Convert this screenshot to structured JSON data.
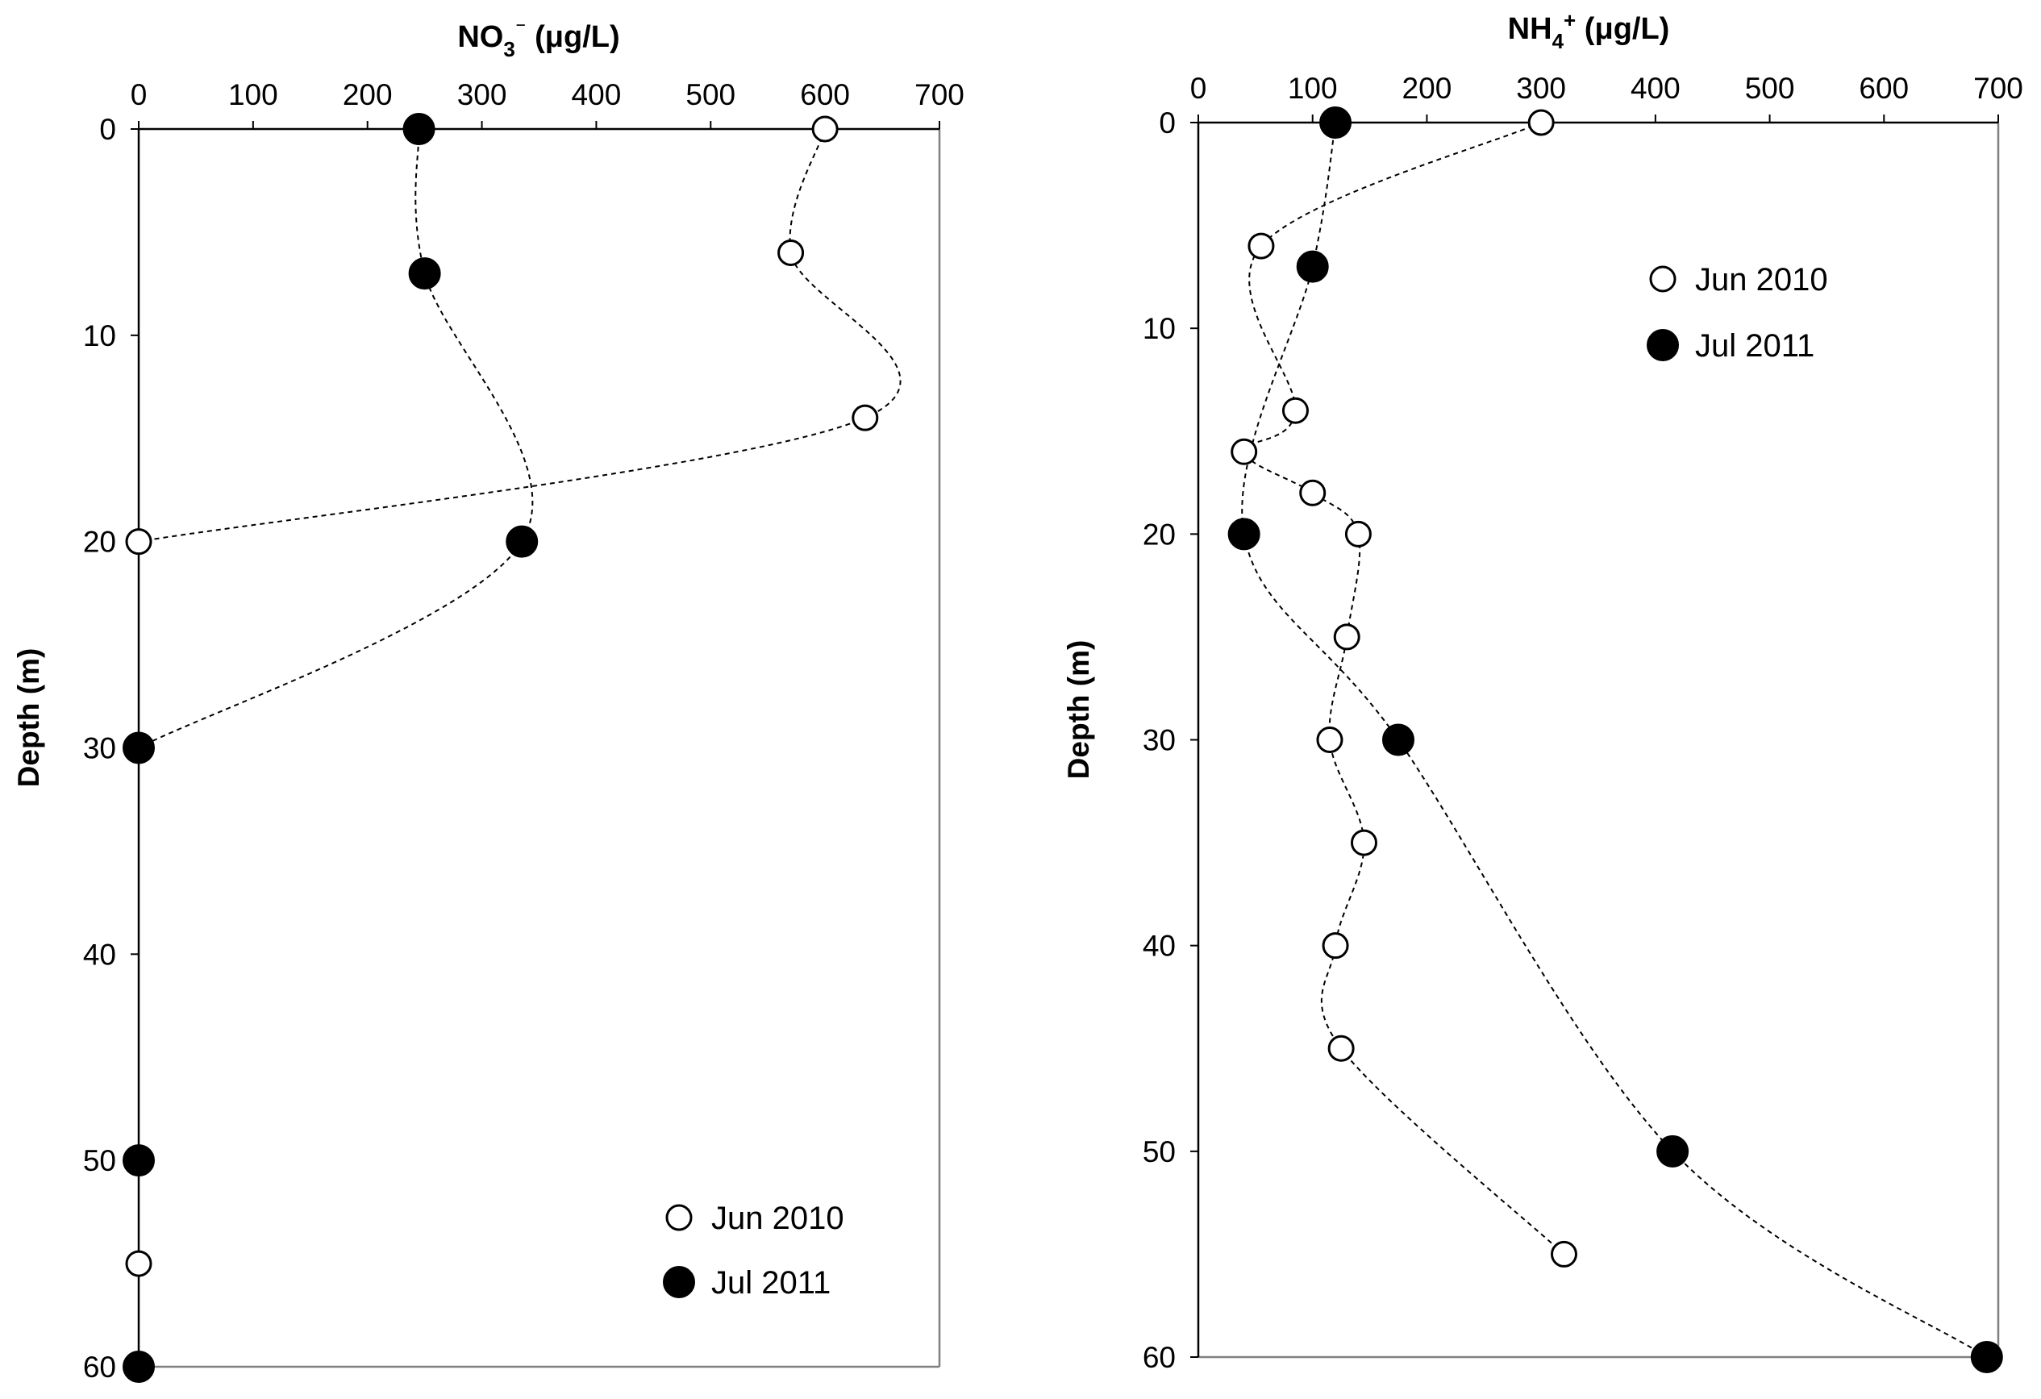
{
  "chart_data": [
    {
      "type": "scatter",
      "title": "NO₃⁻ (μg/L)",
      "title_parts": [
        "NO",
        "3",
        "⁻",
        " (",
        "μ",
        "g/L)"
      ],
      "xlabel": "NO₃⁻ (μg/L)",
      "ylabel": "Depth (m)",
      "xlim": [
        0,
        700
      ],
      "ylim": [
        0,
        60
      ],
      "x_ticks": [
        "0",
        "100",
        "200",
        "300",
        "400",
        "500",
        "600",
        "700"
      ],
      "y_ticks": [
        "0",
        "10",
        "20",
        "30",
        "40",
        "50",
        "60"
      ],
      "x_axis_position": "top",
      "y_axis_reversed": true,
      "grid": false,
      "legend_position": "bottom-right",
      "series": [
        {
          "name": "Jun 2010",
          "marker": "open-circle",
          "points": [
            {
              "x": 600,
              "depth": 0
            },
            {
              "x": 570,
              "depth": 6
            },
            {
              "x": 635,
              "depth": 14
            },
            {
              "x": 0,
              "depth": 20
            },
            {
              "x": 0,
              "depth": 55
            }
          ],
          "curve_through": [
            0,
            1,
            2,
            3
          ]
        },
        {
          "name": "Jul 2011",
          "marker": "filled-circle",
          "points": [
            {
              "x": 245,
              "depth": 0
            },
            {
              "x": 250,
              "depth": 7
            },
            {
              "x": 335,
              "depth": 20
            },
            {
              "x": 0,
              "depth": 30
            },
            {
              "x": 0,
              "depth": 50
            },
            {
              "x": 0,
              "depth": 60
            }
          ],
          "curve_through": [
            0,
            1,
            2,
            3
          ]
        }
      ],
      "legend": [
        {
          "label": "Jun 2010",
          "marker": "open-circle"
        },
        {
          "label": "Jul 2011",
          "marker": "filled-circle"
        }
      ]
    },
    {
      "type": "scatter",
      "title": "NH₄⁺ (μg/L)",
      "title_parts": [
        "NH",
        "4",
        "+",
        " (",
        "μ",
        "g/L)"
      ],
      "xlabel": "NH₄⁺ (μg/L)",
      "ylabel": "Depth (m)",
      "xlim": [
        0,
        700
      ],
      "ylim": [
        0,
        60
      ],
      "x_ticks": [
        "0",
        "100",
        "200",
        "300",
        "400",
        "500",
        "600",
        "700"
      ],
      "y_ticks": [
        "0",
        "10",
        "20",
        "30",
        "40",
        "50",
        "60"
      ],
      "x_axis_position": "top",
      "y_axis_reversed": true,
      "grid": false,
      "legend_position": "top-right",
      "series": [
        {
          "name": "Jun 2010",
          "marker": "open-circle",
          "points": [
            {
              "x": 300,
              "depth": 0
            },
            {
              "x": 55,
              "depth": 6
            },
            {
              "x": 85,
              "depth": 14
            },
            {
              "x": 40,
              "depth": 16
            },
            {
              "x": 100,
              "depth": 18
            },
            {
              "x": 140,
              "depth": 20
            },
            {
              "x": 130,
              "depth": 25
            },
            {
              "x": 115,
              "depth": 30
            },
            {
              "x": 145,
              "depth": 35
            },
            {
              "x": 120,
              "depth": 40
            },
            {
              "x": 125,
              "depth": 45
            },
            {
              "x": 320,
              "depth": 55
            }
          ],
          "curve_through": [
            0,
            1,
            2,
            3,
            4,
            5,
            6,
            7,
            8,
            9,
            10,
            11
          ]
        },
        {
          "name": "Jul 2011",
          "marker": "filled-circle",
          "points": [
            {
              "x": 120,
              "depth": 0
            },
            {
              "x": 100,
              "depth": 7
            },
            {
              "x": 40,
              "depth": 20
            },
            {
              "x": 175,
              "depth": 30
            },
            {
              "x": 415,
              "depth": 50
            },
            {
              "x": 690,
              "depth": 60
            }
          ],
          "curve_through": [
            0,
            1,
            2,
            3,
            4,
            5
          ]
        }
      ],
      "legend": [
        {
          "label": "Jun 2010",
          "marker": "open-circle"
        },
        {
          "label": "Jul 2011",
          "marker": "filled-circle"
        }
      ]
    }
  ]
}
